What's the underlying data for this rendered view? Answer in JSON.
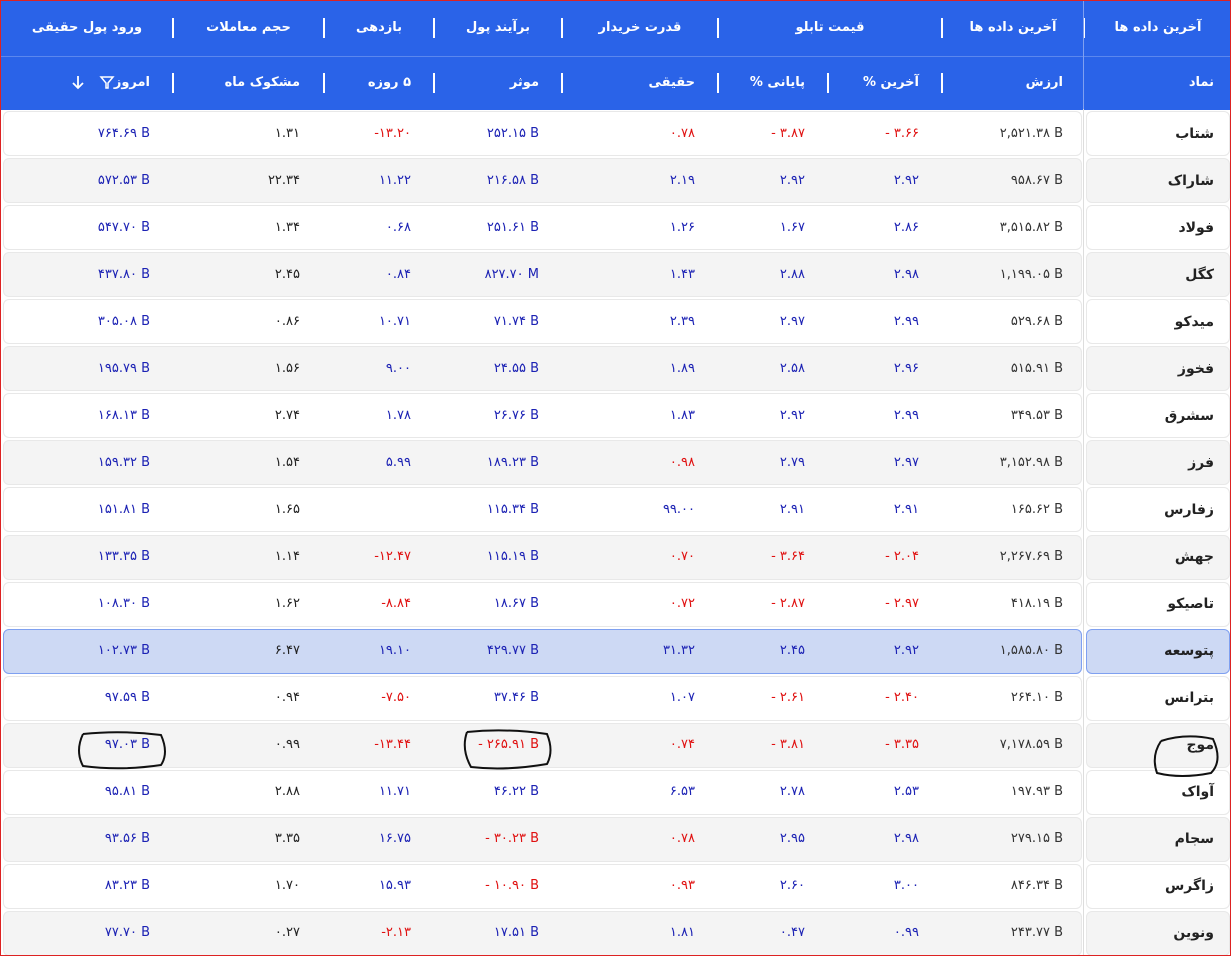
{
  "header": {
    "groups": [
      "آخرین داده ها",
      "آخرین داده ها",
      "قیمت تابلو",
      "قدرت خریدار",
      "برآیند پول",
      "بازدهی",
      "حجم معاملات",
      "ورود پول حقیقی"
    ],
    "columns": [
      "نماد",
      "ارزش",
      "آخرین %",
      "پایانی %",
      "حقیقی",
      "موثر",
      "۵ روزه",
      "مشکوک ماه",
      "امروز"
    ]
  },
  "rows": [
    {
      "symbol": "شتاب",
      "values": [
        "۲,۵۲۱.۳۸ B",
        "- ۳.۶۶",
        "- ۳.۸۷",
        "۰.۷۸",
        "۲۵۲.۱۵ B",
        "-۱۳.۲۰",
        "۱.۳۱",
        "۷۶۴.۶۹ B"
      ],
      "red": [
        1,
        2,
        3,
        5
      ]
    },
    {
      "symbol": "شاراک",
      "values": [
        "۹۵۸.۶۷ B",
        "۲.۹۲",
        "۲.۹۲",
        "۲.۱۹",
        "۲۱۶.۵۸ B",
        "۱۱.۲۲",
        "۲۲.۳۴",
        "۵۷۲.۵۳ B"
      ],
      "red": []
    },
    {
      "symbol": "فولاد",
      "values": [
        "۳,۵۱۵.۸۲ B",
        "۲.۸۶",
        "۱.۶۷",
        "۱.۲۶",
        "۲۵۱.۶۱ B",
        "۰.۶۸",
        "۱.۳۴",
        "۵۴۷.۷۰ B"
      ],
      "red": []
    },
    {
      "symbol": "کگل",
      "values": [
        "۱,۱۹۹.۰۵ B",
        "۲.۹۸",
        "۲.۸۸",
        "۱.۴۳",
        "۸۲۷.۷۰ M",
        "۰.۸۴",
        "۲.۴۵",
        "۴۳۷.۸۰ B"
      ],
      "red": []
    },
    {
      "symbol": "میدکو",
      "values": [
        "۵۲۹.۶۸ B",
        "۲.۹۹",
        "۲.۹۷",
        "۲.۳۹",
        "۷۱.۷۴ B",
        "۱۰.۷۱",
        "۰.۸۶",
        "۳۰۵.۰۸ B"
      ],
      "red": []
    },
    {
      "symbol": "فخوز",
      "values": [
        "۵۱۵.۹۱ B",
        "۲.۹۶",
        "۲.۵۸",
        "۱.۸۹",
        "۲۴.۵۵ B",
        "۹.۰۰",
        "۱.۵۶",
        "۱۹۵.۷۹ B"
      ],
      "red": []
    },
    {
      "symbol": "سشرق",
      "values": [
        "۳۴۹.۵۳ B",
        "۲.۹۹",
        "۲.۹۲",
        "۱.۸۳",
        "۲۶.۷۶ B",
        "۱.۷۸",
        "۲.۷۴",
        "۱۶۸.۱۳ B"
      ],
      "red": []
    },
    {
      "symbol": "فرز",
      "values": [
        "۳,۱۵۲.۹۸ B",
        "۲.۹۷",
        "۲.۷۹",
        "۰.۹۸",
        "۱۸۹.۲۳ B",
        "۵.۹۹",
        "۱.۵۴",
        "۱۵۹.۳۲ B"
      ],
      "red": [
        3
      ]
    },
    {
      "symbol": "زفارس",
      "values": [
        "۱۶۵.۶۲ B",
        "۲.۹۱",
        "۲.۹۱",
        "۹۹.۰۰",
        "۱۱۵.۳۴ B",
        null,
        "۱.۶۵",
        "۱۵۱.۸۱ B"
      ],
      "red": []
    },
    {
      "symbol": "جهش",
      "values": [
        "۲,۲۶۷.۶۹ B",
        "- ۲.۰۴",
        "- ۳.۶۴",
        "۰.۷۰",
        "۱۱۵.۱۹ B",
        "-۱۲.۴۷",
        "۱.۱۴",
        "۱۳۳.۳۵ B"
      ],
      "red": [
        1,
        2,
        3,
        5
      ]
    },
    {
      "symbol": "تاصیکو",
      "values": [
        "۴۱۸.۱۹ B",
        "- ۲.۹۷",
        "- ۲.۸۷",
        "۰.۷۲",
        "۱۸.۶۷ B",
        "-۸.۸۴",
        "۱.۶۲",
        "۱۰۸.۳۰ B"
      ],
      "red": [
        1,
        2,
        3,
        5
      ]
    },
    {
      "symbol": "پتوسعه",
      "values": [
        "۱,۵۸۵.۸۰ B",
        "۲.۹۲",
        "۲.۴۵",
        "۳۱.۳۲",
        "۴۲۹.۷۷ B",
        "۱۹.۱۰",
        "۶.۴۷",
        "۱۰۲.۷۳ B"
      ],
      "red": [],
      "selected": true
    },
    {
      "symbol": "بترانس",
      "values": [
        "۲۶۴.۱۰ B",
        "- ۲.۴۰",
        "- ۲.۶۱",
        "۱.۰۷",
        "۳۷.۴۶ B",
        "-۷.۵۰",
        "۰.۹۴",
        "۹۷.۵۹ B"
      ],
      "red": [
        1,
        2,
        5
      ]
    },
    {
      "symbol": "موج",
      "values": [
        "۷,۱۷۸.۵۹ B",
        "- ۳.۳۵",
        "- ۳.۸۱",
        "۰.۷۴",
        "- ۲۶۵.۹۱ B",
        "-۱۳.۴۴",
        "۰.۹۹",
        "۹۷.۰۳ B"
      ],
      "red": [
        1,
        2,
        3,
        4,
        5
      ]
    },
    {
      "symbol": "آواک",
      "values": [
        "۱۹۷.۹۳ B",
        "۲.۵۳",
        "۲.۷۸",
        "۶.۵۳",
        "۴۶.۲۲ B",
        "۱۱.۷۱",
        "۲.۸۸",
        "۹۵.۸۱ B"
      ],
      "red": []
    },
    {
      "symbol": "سجام",
      "values": [
        "۲۷۹.۱۵ B",
        "۲.۹۸",
        "۲.۹۵",
        "۰.۷۸",
        "- ۳۰.۲۳ B",
        "۱۶.۷۵",
        "۳.۳۵",
        "۹۳.۵۶ B"
      ],
      "red": [
        3,
        4
      ]
    },
    {
      "symbol": "زاگرس",
      "values": [
        "۸۴۶.۳۴ B",
        "۳.۰۰",
        "۲.۶۰",
        "۰.۹۳",
        "- ۱۰.۹۰ B",
        "۱۵.۹۳",
        "۱.۷۰",
        "۸۳.۲۳ B"
      ],
      "red": [
        3,
        4
      ]
    },
    {
      "symbol": "ونوین",
      "values": [
        "۲۴۳.۷۷ B",
        "۰.۹۹",
        "۰.۴۷",
        "۱.۸۱",
        "۱۷.۵۱ B",
        "-۲.۱۳",
        "۰.۲۷",
        "۷۷.۷۰ B"
      ],
      "red": [
        5
      ]
    }
  ]
}
